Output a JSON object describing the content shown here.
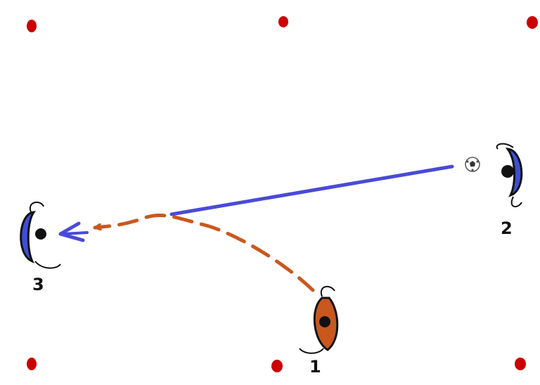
{
  "diagram": {
    "colors": {
      "background": "#ffffff",
      "cone": "#cc0000",
      "pass_line": "#4a4ad8",
      "run_line": "#c8581e",
      "player_blue": "#3d4fd6",
      "player_orange": "#c8581e",
      "player_shadow": "#111111",
      "label": "#111111"
    },
    "players": [
      {
        "label": "1",
        "team": "orange",
        "icon": "player-icon"
      },
      {
        "label": "2",
        "team": "blue",
        "icon": "player-icon"
      },
      {
        "label": "3",
        "team": "blue",
        "icon": "player-icon"
      }
    ],
    "cones": {
      "count": 6,
      "icon": "cone-marker-icon"
    },
    "ball": {
      "icon": "soccer-ball-icon"
    },
    "paths": {
      "pass": {
        "style": "solid",
        "from_player": "2",
        "to_player": "3"
      },
      "run": {
        "style": "dashed",
        "from_player": "1",
        "to_player": "3"
      }
    }
  }
}
